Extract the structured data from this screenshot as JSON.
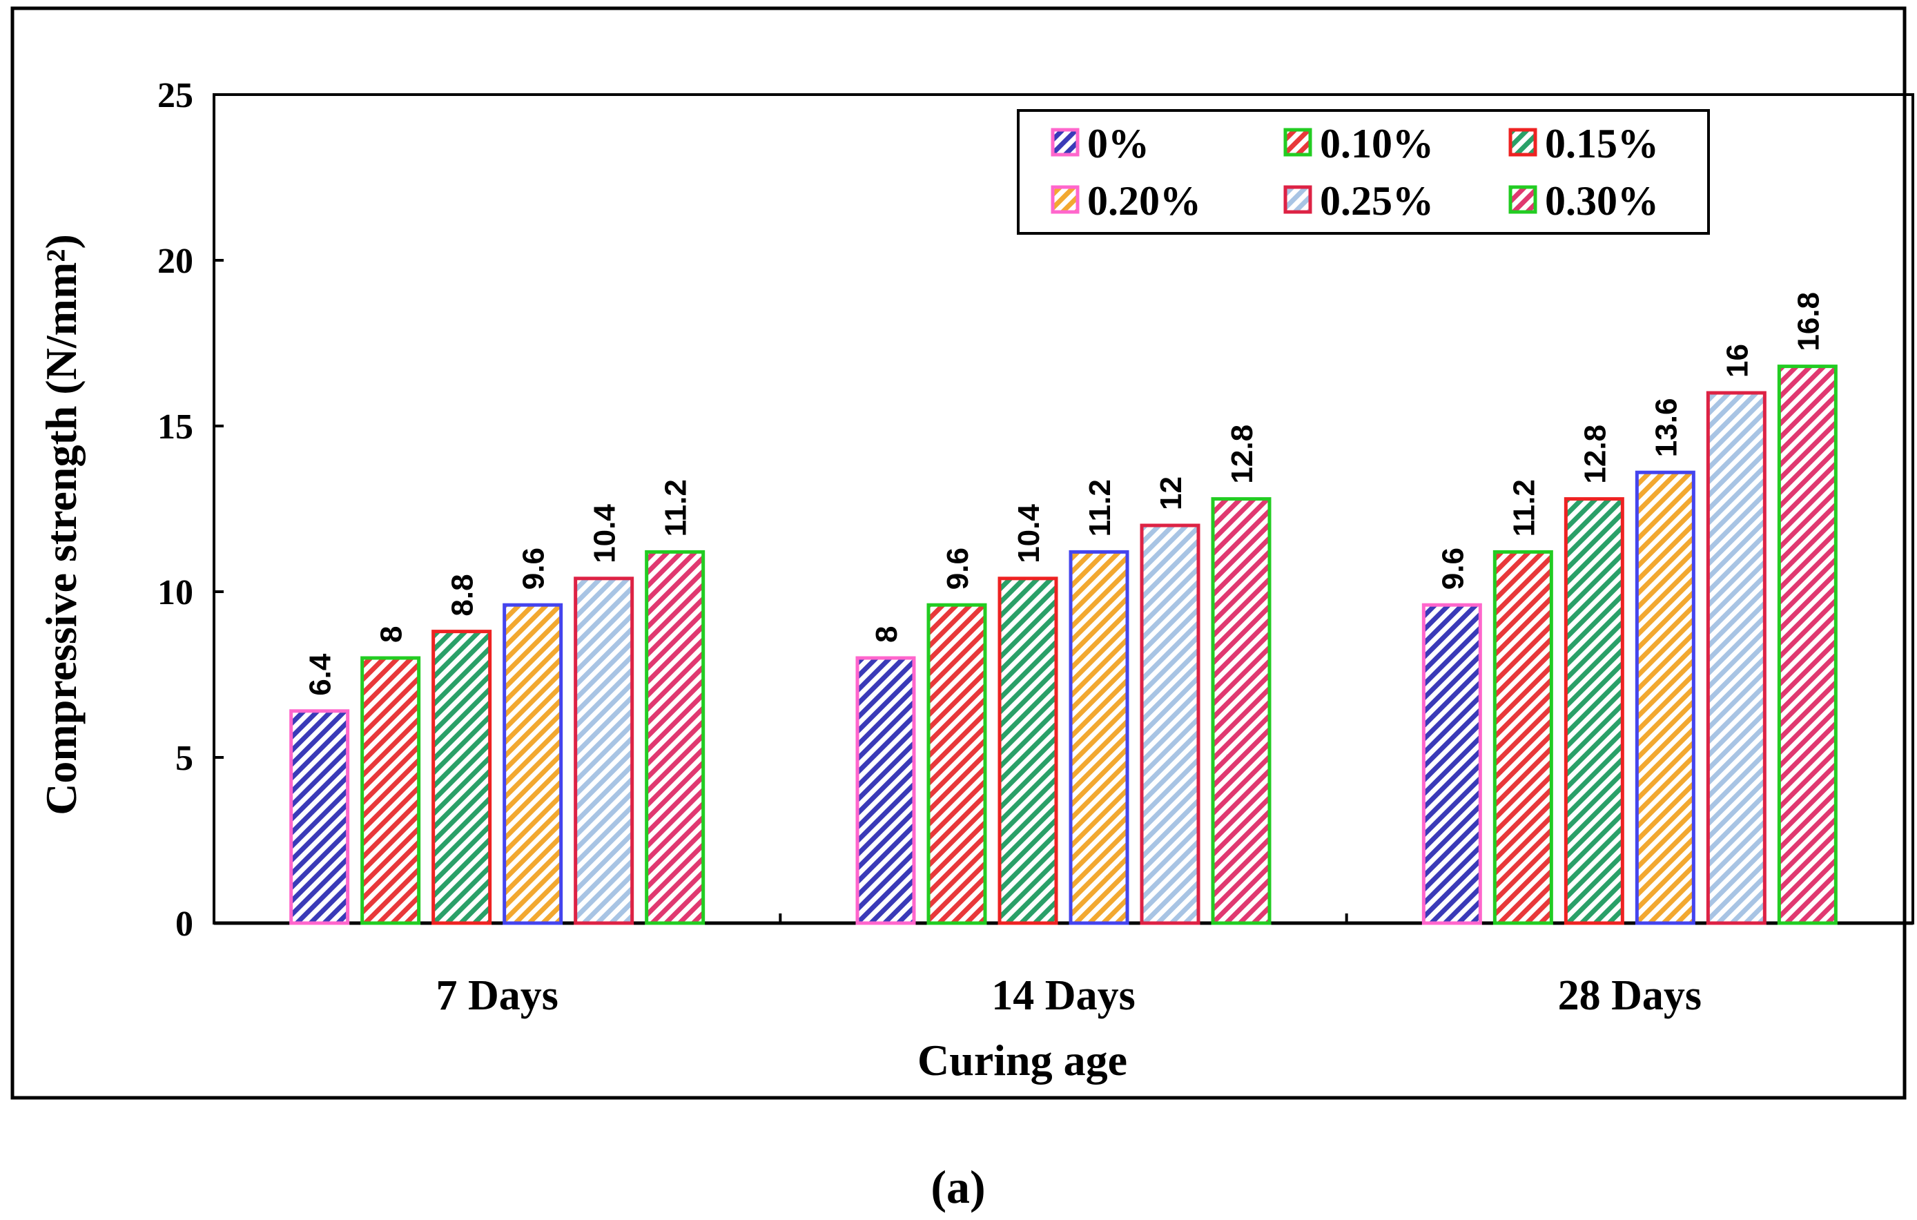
{
  "chart_data": {
    "type": "bar",
    "categories": [
      "7 Days",
      "14 Days",
      "28 Days"
    ],
    "series": [
      {
        "name": "0%",
        "values": [
          6.4,
          8,
          9.6
        ],
        "fill": "#3a3ab8",
        "border": "#ff66cc"
      },
      {
        "name": "0.10%",
        "values": [
          8,
          9.6,
          11.2
        ],
        "fill": "#e8383a",
        "border": "#22cc22"
      },
      {
        "name": "0.15%",
        "values": [
          8.8,
          10.4,
          12.8
        ],
        "fill": "#2aa068",
        "border": "#ee2222"
      },
      {
        "name": "0.20%",
        "values": [
          9.6,
          11.2,
          13.6
        ],
        "fill": "#f2a830",
        "border": "#4444ee"
      },
      {
        "name": "0.25%",
        "values": [
          10.4,
          12,
          16
        ],
        "fill": "#a8c4e4",
        "border": "#dd2244"
      },
      {
        "name": "0.30%",
        "values": [
          11.2,
          12.8,
          16.8
        ],
        "fill": "#e03870",
        "border": "#22cc22"
      }
    ],
    "legend_border_map": [
      "#ff66cc",
      "#22cc22",
      "#ee2222",
      "#ff66cc",
      "#dd2244",
      "#22cc22"
    ],
    "value_labels": [
      [
        "6.4",
        "8",
        "9.6"
      ],
      [
        "8",
        "9.6",
        "11.2"
      ],
      [
        "8.8",
        "10.4",
        "12.8"
      ],
      [
        "9.6",
        "11.2",
        "13.6"
      ],
      [
        "10.4",
        "12",
        "16"
      ],
      [
        "11.2",
        "12.8",
        "16.8"
      ]
    ],
    "yticks": [
      "0",
      "5",
      "10",
      "15",
      "20",
      "25"
    ],
    "ylim": [
      0,
      25
    ],
    "xlabel": "Curing age",
    "ylabel": "Compressive strength (N/mm²)",
    "legend_position": "top-right",
    "grid": false
  },
  "caption": "(a)"
}
